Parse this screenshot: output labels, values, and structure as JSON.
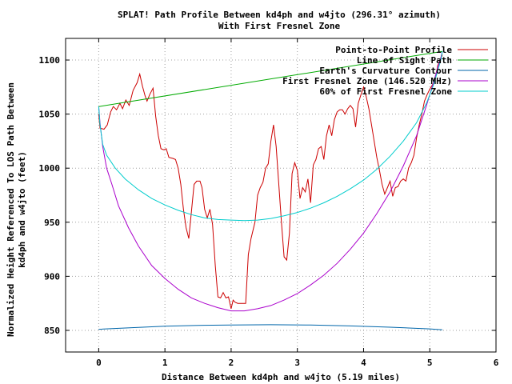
{
  "chart_data": {
    "type": "line",
    "title_lines": [
      "SPLAT! Path Profile Between kd4ph and w4jto (296.31° azimuth)",
      "With First Fresnel Zone"
    ],
    "xlabel": "Distance Between kd4ph and w4jto (5.19 miles)",
    "ylabel_lines": [
      "Normalized Height Referenced To LOS Path Between",
      "kd4ph and w4jto (feet)"
    ],
    "xlim": [
      -0.5,
      6
    ],
    "ylim": [
      830,
      1120
    ],
    "x_ticks": [
      0,
      1,
      2,
      3,
      4,
      5,
      6
    ],
    "y_ticks": [
      850,
      900,
      950,
      1000,
      1050,
      1100
    ],
    "grid": true,
    "legend_position": "top-right",
    "series": [
      {
        "name": "Point-to-Point Profile",
        "color": "#cc0000",
        "points": [
          [
            0.0,
            1050
          ],
          [
            0.02,
            1037
          ],
          [
            0.08,
            1036
          ],
          [
            0.13,
            1040
          ],
          [
            0.18,
            1052
          ],
          [
            0.22,
            1057
          ],
          [
            0.27,
            1054
          ],
          [
            0.32,
            1060
          ],
          [
            0.36,
            1055
          ],
          [
            0.41,
            1063
          ],
          [
            0.46,
            1058
          ],
          [
            0.52,
            1072
          ],
          [
            0.58,
            1079
          ],
          [
            0.62,
            1087
          ],
          [
            0.66,
            1076
          ],
          [
            0.7,
            1067
          ],
          [
            0.73,
            1062
          ],
          [
            0.77,
            1068
          ],
          [
            0.82,
            1074
          ],
          [
            0.86,
            1048
          ],
          [
            0.9,
            1030
          ],
          [
            0.94,
            1018
          ],
          [
            0.98,
            1017
          ],
          [
            1.02,
            1018
          ],
          [
            1.06,
            1010
          ],
          [
            1.12,
            1009
          ],
          [
            1.16,
            1008
          ],
          [
            1.2,
            1000
          ],
          [
            1.24,
            985
          ],
          [
            1.28,
            962
          ],
          [
            1.32,
            945
          ],
          [
            1.36,
            935
          ],
          [
            1.4,
            960
          ],
          [
            1.44,
            985
          ],
          [
            1.48,
            988
          ],
          [
            1.53,
            988
          ],
          [
            1.56,
            982
          ],
          [
            1.6,
            962
          ],
          [
            1.64,
            954
          ],
          [
            1.68,
            962
          ],
          [
            1.72,
            948
          ],
          [
            1.76,
            910
          ],
          [
            1.8,
            881
          ],
          [
            1.84,
            880
          ],
          [
            1.88,
            885
          ],
          [
            1.92,
            880
          ],
          [
            1.96,
            881
          ],
          [
            2.0,
            870
          ],
          [
            2.03,
            878
          ],
          [
            2.06,
            876
          ],
          [
            2.1,
            875
          ],
          [
            2.16,
            875
          ],
          [
            2.22,
            875
          ],
          [
            2.26,
            920
          ],
          [
            2.3,
            935
          ],
          [
            2.36,
            950
          ],
          [
            2.4,
            975
          ],
          [
            2.44,
            982
          ],
          [
            2.48,
            987
          ],
          [
            2.52,
            1000
          ],
          [
            2.56,
            1004
          ],
          [
            2.6,
            1025
          ],
          [
            2.64,
            1040
          ],
          [
            2.68,
            1020
          ],
          [
            2.72,
            985
          ],
          [
            2.76,
            950
          ],
          [
            2.8,
            918
          ],
          [
            2.84,
            915
          ],
          [
            2.88,
            940
          ],
          [
            2.92,
            995
          ],
          [
            2.96,
            1005
          ],
          [
            3.0,
            998
          ],
          [
            3.04,
            972
          ],
          [
            3.08,
            982
          ],
          [
            3.12,
            978
          ],
          [
            3.16,
            990
          ],
          [
            3.2,
            968
          ],
          [
            3.24,
            1003
          ],
          [
            3.28,
            1008
          ],
          [
            3.32,
            1018
          ],
          [
            3.36,
            1020
          ],
          [
            3.4,
            1008
          ],
          [
            3.44,
            1030
          ],
          [
            3.48,
            1040
          ],
          [
            3.52,
            1030
          ],
          [
            3.56,
            1045
          ],
          [
            3.6,
            1052
          ],
          [
            3.64,
            1054
          ],
          [
            3.68,
            1054
          ],
          [
            3.72,
            1050
          ],
          [
            3.76,
            1055
          ],
          [
            3.8,
            1058
          ],
          [
            3.84,
            1055
          ],
          [
            3.88,
            1038
          ],
          [
            3.92,
            1060
          ],
          [
            3.96,
            1068
          ],
          [
            4.0,
            1075
          ],
          [
            4.04,
            1066
          ],
          [
            4.08,
            1055
          ],
          [
            4.12,
            1040
          ],
          [
            4.16,
            1025
          ],
          [
            4.2,
            1010
          ],
          [
            4.24,
            998
          ],
          [
            4.28,
            985
          ],
          [
            4.32,
            976
          ],
          [
            4.36,
            982
          ],
          [
            4.4,
            988
          ],
          [
            4.44,
            974
          ],
          [
            4.48,
            982
          ],
          [
            4.52,
            983
          ],
          [
            4.56,
            988
          ],
          [
            4.6,
            990
          ],
          [
            4.64,
            988
          ],
          [
            4.68,
            1000
          ],
          [
            4.72,
            1005
          ],
          [
            4.76,
            1012
          ],
          [
            4.8,
            1028
          ],
          [
            4.84,
            1040
          ],
          [
            4.88,
            1050
          ],
          [
            4.92,
            1062
          ],
          [
            4.96,
            1068
          ],
          [
            5.0,
            1073
          ],
          [
            5.04,
            1077
          ],
          [
            5.08,
            1082
          ],
          [
            5.12,
            1095
          ],
          [
            5.16,
            1100
          ],
          [
            5.19,
            1105
          ]
        ]
      },
      {
        "name": "Line of Sight Path",
        "color": "#00aa00",
        "points": [
          [
            0.0,
            1057
          ],
          [
            5.19,
            1108
          ]
        ]
      },
      {
        "name": "Earth's Curvature Contour",
        "color": "#0066aa",
        "points": [
          [
            0.0,
            851
          ],
          [
            0.5,
            852.5
          ],
          [
            1.0,
            853.8
          ],
          [
            1.5,
            854.6
          ],
          [
            2.0,
            855.0
          ],
          [
            2.6,
            855.2
          ],
          [
            3.2,
            854.9
          ],
          [
            3.8,
            854.1
          ],
          [
            4.4,
            852.9
          ],
          [
            5.0,
            851.4
          ],
          [
            5.19,
            850.6
          ]
        ]
      },
      {
        "name": "First Fresnel Zone (146.520 MHz)",
        "color": "#aa00cc",
        "points": [
          [
            0.0,
            1057
          ],
          [
            0.02,
            1042
          ],
          [
            0.06,
            1020
          ],
          [
            0.12,
            1000
          ],
          [
            0.2,
            985
          ],
          [
            0.3,
            965
          ],
          [
            0.45,
            945
          ],
          [
            0.6,
            928
          ],
          [
            0.8,
            910
          ],
          [
            1.0,
            898
          ],
          [
            1.2,
            888
          ],
          [
            1.4,
            880
          ],
          [
            1.6,
            875
          ],
          [
            1.8,
            871
          ],
          [
            2.0,
            868
          ],
          [
            2.2,
            868
          ],
          [
            2.4,
            870
          ],
          [
            2.6,
            873
          ],
          [
            2.8,
            878
          ],
          [
            3.0,
            884
          ],
          [
            3.2,
            892
          ],
          [
            3.4,
            901
          ],
          [
            3.6,
            912
          ],
          [
            3.8,
            925
          ],
          [
            4.0,
            940
          ],
          [
            4.2,
            958
          ],
          [
            4.4,
            978
          ],
          [
            4.6,
            1002
          ],
          [
            4.8,
            1030
          ],
          [
            4.95,
            1058
          ],
          [
            5.05,
            1078
          ],
          [
            5.12,
            1093
          ],
          [
            5.17,
            1103
          ],
          [
            5.19,
            1108
          ]
        ]
      },
      {
        "name": "60% of First Fresnel Zone",
        "color": "#00cccc",
        "points": [
          [
            0.0,
            1057
          ],
          [
            0.02,
            1040
          ],
          [
            0.06,
            1022
          ],
          [
            0.12,
            1012
          ],
          [
            0.25,
            1000
          ],
          [
            0.4,
            990
          ],
          [
            0.6,
            980
          ],
          [
            0.8,
            972
          ],
          [
            1.0,
            966
          ],
          [
            1.2,
            961
          ],
          [
            1.4,
            957
          ],
          [
            1.6,
            954
          ],
          [
            1.8,
            952.5
          ],
          [
            2.0,
            952
          ],
          [
            2.2,
            951.5
          ],
          [
            2.4,
            952
          ],
          [
            2.6,
            953.5
          ],
          [
            2.8,
            956
          ],
          [
            3.0,
            959
          ],
          [
            3.2,
            963
          ],
          [
            3.4,
            968
          ],
          [
            3.6,
            974
          ],
          [
            3.8,
            981
          ],
          [
            4.0,
            989
          ],
          [
            4.2,
            999
          ],
          [
            4.4,
            1011
          ],
          [
            4.6,
            1025
          ],
          [
            4.8,
            1042
          ],
          [
            4.95,
            1060
          ],
          [
            5.05,
            1076
          ],
          [
            5.12,
            1090
          ],
          [
            5.17,
            1101
          ],
          [
            5.19,
            1108
          ]
        ]
      }
    ]
  }
}
